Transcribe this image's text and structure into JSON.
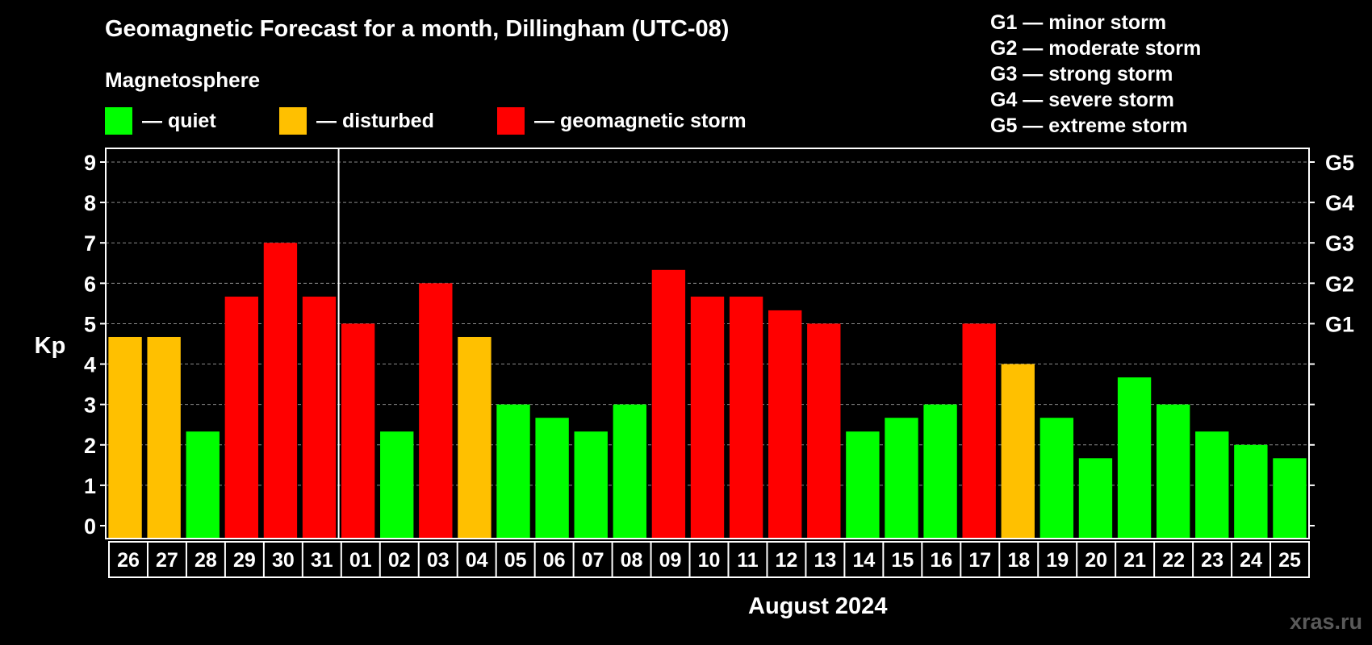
{
  "header": {
    "title": "Geomagnetic Forecast for a month, Dillingham (UTC-08)",
    "subtitle": "Magnetosphere"
  },
  "legend": {
    "quiet": "— quiet",
    "disturbed": "— disturbed",
    "storm": "— geomagnetic storm"
  },
  "g_legend": [
    "G1 — minor storm",
    "G2 — moderate storm",
    "G3 — strong storm",
    "G4 — severe storm",
    "G5 — extreme storm"
  ],
  "colors": {
    "quiet": "#00ff00",
    "disturbed": "#ffc000",
    "storm": "#ff0000"
  },
  "month_label": "August 2024",
  "watermark": "xras.ru",
  "chart_data": {
    "type": "bar",
    "ylabel": "Kp",
    "ylim": [
      0,
      9
    ],
    "y_ticks": [
      "0",
      "1",
      "2",
      "3",
      "4",
      "5",
      "6",
      "7",
      "8",
      "9"
    ],
    "right_ticks": [
      {
        "y": 5,
        "label": "G1"
      },
      {
        "y": 6,
        "label": "G2"
      },
      {
        "y": 7,
        "label": "G3"
      },
      {
        "y": 8,
        "label": "G4"
      },
      {
        "y": 9,
        "label": "G5"
      }
    ],
    "grid": "dashed horizontal",
    "categories": [
      "26",
      "27",
      "28",
      "29",
      "30",
      "31",
      "01",
      "02",
      "03",
      "04",
      "05",
      "06",
      "07",
      "08",
      "09",
      "10",
      "11",
      "12",
      "13",
      "14",
      "15",
      "16",
      "17",
      "18",
      "19",
      "20",
      "21",
      "22",
      "23",
      "24",
      "25"
    ],
    "values": [
      4.67,
      4.67,
      2.33,
      5.67,
      7.0,
      5.67,
      5.0,
      2.33,
      6.0,
      4.67,
      3.0,
      2.67,
      2.33,
      3.0,
      6.33,
      5.67,
      5.67,
      5.33,
      5.0,
      2.33,
      2.67,
      3.0,
      5.0,
      4.0,
      2.67,
      1.67,
      3.67,
      3.0,
      2.33,
      2.0,
      1.67
    ],
    "levels": [
      "disturbed",
      "disturbed",
      "quiet",
      "storm",
      "storm",
      "storm",
      "storm",
      "quiet",
      "storm",
      "disturbed",
      "quiet",
      "quiet",
      "quiet",
      "quiet",
      "storm",
      "storm",
      "storm",
      "storm",
      "storm",
      "quiet",
      "quiet",
      "quiet",
      "storm",
      "disturbed",
      "quiet",
      "quiet",
      "quiet",
      "quiet",
      "quiet",
      "quiet",
      "quiet"
    ]
  }
}
